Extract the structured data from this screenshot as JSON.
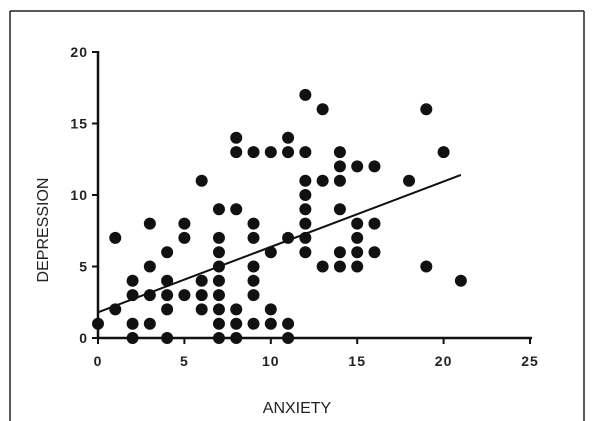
{
  "chart_data": {
    "type": "scatter",
    "xlabel": "ANXIETY",
    "ylabel": "DEPRESSION",
    "xlim": [
      0,
      25
    ],
    "ylim": [
      0,
      20
    ],
    "x_ticks": [
      0,
      5,
      10,
      15,
      20,
      25
    ],
    "y_ticks": [
      0,
      5,
      10,
      15,
      20
    ],
    "x_tick_labels": [
      "0",
      "5",
      "10",
      "15",
      "20",
      "25"
    ],
    "y_tick_labels": [
      "0",
      "5",
      "10",
      "15",
      "20"
    ],
    "grid": false,
    "legend": "none",
    "marker_color": "#111111",
    "regression_line": {
      "x": [
        0,
        21
      ],
      "y": [
        1.8,
        11.4
      ]
    },
    "points": [
      {
        "x": 0,
        "y": 1
      },
      {
        "x": 1,
        "y": 7
      },
      {
        "x": 1,
        "y": 2
      },
      {
        "x": 2,
        "y": 4
      },
      {
        "x": 2,
        "y": 3
      },
      {
        "x": 2,
        "y": 1
      },
      {
        "x": 2,
        "y": 0
      },
      {
        "x": 3,
        "y": 8
      },
      {
        "x": 3,
        "y": 5
      },
      {
        "x": 3,
        "y": 3
      },
      {
        "x": 3,
        "y": 1
      },
      {
        "x": 4,
        "y": 6
      },
      {
        "x": 4,
        "y": 4
      },
      {
        "x": 4,
        "y": 3
      },
      {
        "x": 4,
        "y": 2
      },
      {
        "x": 4,
        "y": 0
      },
      {
        "x": 5,
        "y": 8
      },
      {
        "x": 5,
        "y": 7
      },
      {
        "x": 5,
        "y": 3
      },
      {
        "x": 6,
        "y": 11
      },
      {
        "x": 6,
        "y": 4
      },
      {
        "x": 6,
        "y": 3
      },
      {
        "x": 6,
        "y": 2
      },
      {
        "x": 7,
        "y": 9
      },
      {
        "x": 7,
        "y": 7
      },
      {
        "x": 7,
        "y": 6
      },
      {
        "x": 7,
        "y": 5
      },
      {
        "x": 7,
        "y": 4
      },
      {
        "x": 7,
        "y": 3
      },
      {
        "x": 7,
        "y": 2
      },
      {
        "x": 7,
        "y": 1
      },
      {
        "x": 7,
        "y": 0
      },
      {
        "x": 8,
        "y": 14
      },
      {
        "x": 8,
        "y": 13
      },
      {
        "x": 8,
        "y": 9
      },
      {
        "x": 8,
        "y": 2
      },
      {
        "x": 8,
        "y": 1
      },
      {
        "x": 8,
        "y": 0
      },
      {
        "x": 9,
        "y": 13
      },
      {
        "x": 9,
        "y": 8
      },
      {
        "x": 9,
        "y": 7
      },
      {
        "x": 9,
        "y": 5
      },
      {
        "x": 9,
        "y": 4
      },
      {
        "x": 9,
        "y": 3
      },
      {
        "x": 9,
        "y": 1
      },
      {
        "x": 10,
        "y": 13
      },
      {
        "x": 10,
        "y": 6
      },
      {
        "x": 10,
        "y": 2
      },
      {
        "x": 10,
        "y": 1
      },
      {
        "x": 11,
        "y": 14
      },
      {
        "x": 11,
        "y": 13
      },
      {
        "x": 11,
        "y": 7
      },
      {
        "x": 11,
        "y": 1
      },
      {
        "x": 11,
        "y": 0
      },
      {
        "x": 12,
        "y": 17
      },
      {
        "x": 12,
        "y": 13
      },
      {
        "x": 12,
        "y": 11
      },
      {
        "x": 12,
        "y": 10
      },
      {
        "x": 12,
        "y": 9
      },
      {
        "x": 12,
        "y": 8
      },
      {
        "x": 12,
        "y": 7
      },
      {
        "x": 12,
        "y": 6
      },
      {
        "x": 13,
        "y": 16
      },
      {
        "x": 13,
        "y": 11
      },
      {
        "x": 13,
        "y": 5
      },
      {
        "x": 14,
        "y": 13
      },
      {
        "x": 14,
        "y": 12
      },
      {
        "x": 14,
        "y": 11
      },
      {
        "x": 14,
        "y": 9
      },
      {
        "x": 14,
        "y": 6
      },
      {
        "x": 14,
        "y": 5
      },
      {
        "x": 15,
        "y": 12
      },
      {
        "x": 15,
        "y": 8
      },
      {
        "x": 15,
        "y": 7
      },
      {
        "x": 15,
        "y": 6
      },
      {
        "x": 15,
        "y": 5
      },
      {
        "x": 16,
        "y": 12
      },
      {
        "x": 16,
        "y": 8
      },
      {
        "x": 16,
        "y": 6
      },
      {
        "x": 18,
        "y": 11
      },
      {
        "x": 19,
        "y": 16
      },
      {
        "x": 19,
        "y": 5
      },
      {
        "x": 20,
        "y": 13
      },
      {
        "x": 21,
        "y": 4
      }
    ]
  }
}
